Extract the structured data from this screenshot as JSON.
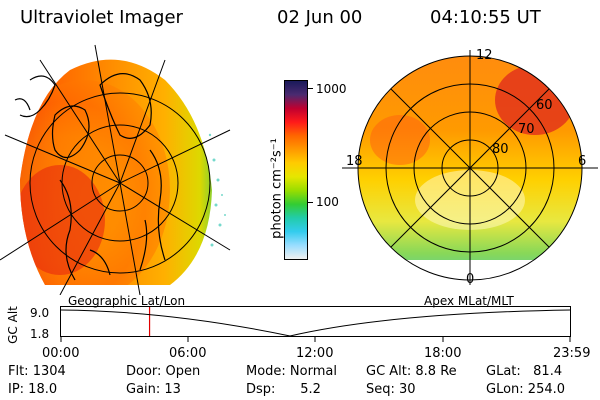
{
  "header": {
    "instrument": "Ultraviolet Imager",
    "date": "02 Jun 00",
    "time": "04:10:55 UT"
  },
  "left_panel": {
    "caption": "Geographic Lat/Lon"
  },
  "right_panel": {
    "caption": "Apex MLat/MLT",
    "mlt_labels": {
      "top": "12",
      "left": "18",
      "right": "6",
      "bottom": "0"
    },
    "lat_labels": [
      "60",
      "70",
      "80"
    ]
  },
  "colorbar": {
    "ticks": [
      "1000",
      "100"
    ],
    "label": "photon cm⁻²s⁻¹",
    "colors": [
      "#1a1a5a",
      "#4a2a70",
      "#c00030",
      "#ff1a1a",
      "#ff6600",
      "#ff9900",
      "#ffcc00",
      "#e6e600",
      "#99dd00",
      "#33cc33",
      "#22ccaa",
      "#33ccee",
      "#99ddff",
      "#f0f0f0"
    ]
  },
  "timeline": {
    "y_label": "GC Alt",
    "y_ticks": [
      "9.0",
      "1.8"
    ],
    "x_ticks": [
      "00:00",
      "06:00",
      "12:00",
      "18:00",
      "23:59"
    ],
    "marker_time_fraction": 0.174
  },
  "info": {
    "flt": "Flt:  1304",
    "ip": "IP:  18.0",
    "door": "Door:  Open",
    "gain": "Gain:  13",
    "mode": "Mode:  Normal",
    "dsp": "Dsp:      5.2",
    "gc_alt": "GC Alt:  8.8 Re",
    "seq": "Seq:  30",
    "glat": "GLat:   81.4",
    "glon": "GLon:  254.0"
  }
}
